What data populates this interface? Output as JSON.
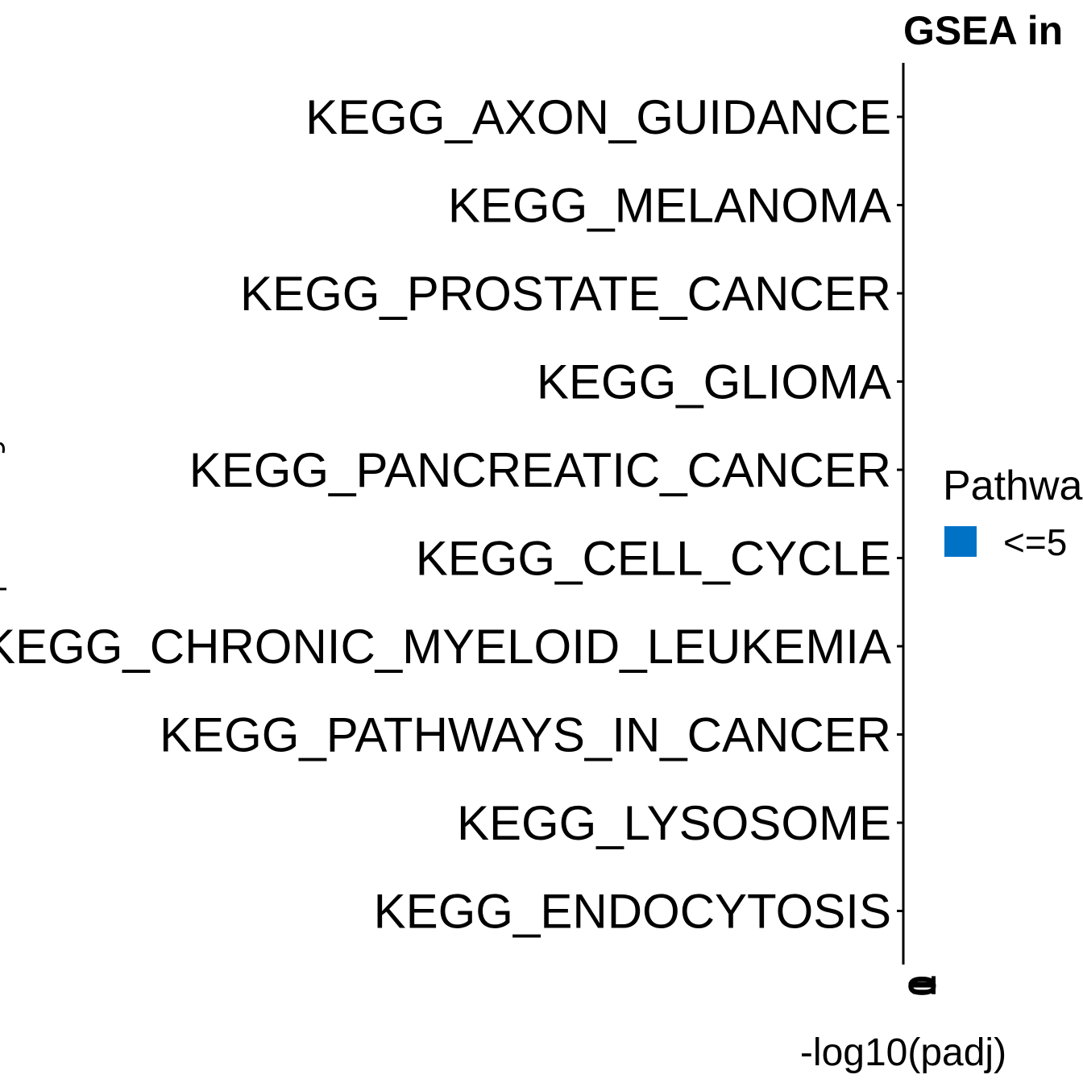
{
  "chart_data": {
    "type": "bar",
    "orientation": "horizontal",
    "title": "GSEA in",
    "xlabel": "-log10(padj)",
    "ylabel": "",
    "categories": [
      "KEGG_AXON_GUIDANCE",
      "KEGG_MELANOMA",
      "KEGG_PROSTATE_CANCER",
      "KEGG_GLIOMA",
      "KEGG_PANCREATIC_CANCER",
      "KEGG_CELL_CYCLE",
      "KEGG_CHRONIC_MYELOID_LEUKEMIA",
      "KEGG_PATHWAYS_IN_CANCER",
      "KEGG_LYSOSOME",
      "KEGG_ENDOCYTOSIS"
    ],
    "values": [
      0,
      0,
      0,
      0,
      0,
      0,
      0,
      0,
      0,
      0
    ],
    "x_tick_labels": [
      "0",
      "1"
    ],
    "legend": {
      "title": "Pathwa",
      "items": [
        {
          "label": "<=5",
          "color": "#0072C6"
        }
      ],
      "position": "right"
    },
    "grid": false
  }
}
